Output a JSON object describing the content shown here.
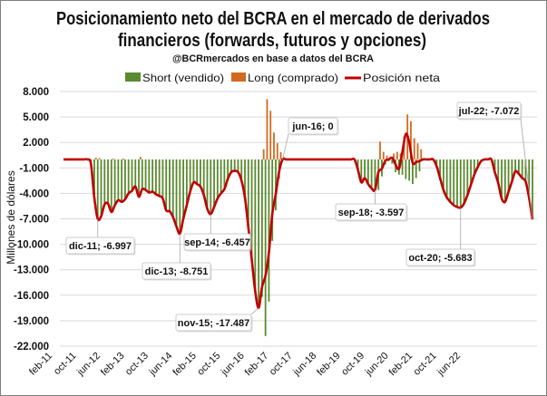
{
  "chart_data": {
    "type": "bar+line",
    "title_line1": "Posicionamiento neto del BCRA en el mercado de derivados",
    "title_line2": "financieros (forwards, futuros y opciones)",
    "subtitle": "@BCRmercados en base a datos del BCRA",
    "ylabel": "Millones de dólares",
    "ylim": [
      -22000,
      8000
    ],
    "y_ticks": [
      "8.000",
      "5.000",
      "2.000",
      "-1.000",
      "-4.000",
      "-7.000",
      "-10.000",
      "-13.000",
      "-16.000",
      "-19.000",
      "-22.000"
    ],
    "y_tick_values": [
      8000,
      5000,
      2000,
      -1000,
      -4000,
      -7000,
      -10000,
      -13000,
      -16000,
      -19000,
      -22000
    ],
    "x_range": [
      "feb-11",
      "jul-22"
    ],
    "x_frequency": "monthly",
    "x_ticks": [
      "feb-11",
      "oct-11",
      "jun-12",
      "feb-13",
      "oct-13",
      "jun-14",
      "feb-15",
      "oct-15",
      "jun-16",
      "feb-17",
      "oct-17",
      "jun-18",
      "feb-19",
      "oct-19",
      "jun-20",
      "feb-21",
      "oct-21",
      "jun-22"
    ],
    "grid": true,
    "legend_position": "top",
    "colors": {
      "short": "#5a8a2e",
      "long": "#d2691e",
      "net": "#c00000"
    },
    "series": [
      {
        "name": "Short (vendido)",
        "kind": "bar",
        "values": [
          0,
          0,
          0,
          0,
          0,
          0,
          0,
          0,
          -500,
          -4500,
          -6997,
          -6700,
          -5300,
          -5200,
          -6200,
          -5400,
          -4800,
          -5000,
          -4700,
          -4000,
          -3700,
          -3200,
          -4400,
          -3500,
          -3600,
          -3900,
          -3800,
          -4100,
          -4300,
          -4600,
          -6000,
          -6100,
          -6800,
          -7900,
          -8751,
          -7000,
          -5400,
          -3800,
          -2700,
          -2900,
          -3200,
          -4200,
          -5800,
          -6457,
          -5600,
          -4600,
          -4000,
          -3500,
          -2300,
          -1500,
          -1350,
          -1500,
          -2500,
          -4500,
          -8000,
          -11800,
          -15500,
          -17487,
          -16200,
          -20800,
          -16750,
          -9600,
          -6000,
          -2250,
          0,
          0,
          0,
          0,
          0,
          0,
          0,
          0,
          0,
          0,
          0,
          0,
          0,
          0,
          0,
          0,
          0,
          0,
          0,
          0,
          0,
          0,
          -1200,
          -2700,
          -2200,
          -3000,
          -3500,
          -3600,
          -3600,
          -2000,
          -600,
          -200,
          -500,
          -1500,
          -1800,
          -1800,
          -2300,
          -2500,
          -2900,
          -2200,
          -1400,
          0,
          0,
          0,
          0,
          -800,
          -2200,
          -3600,
          -4500,
          -5000,
          -5400,
          -5600,
          -5683,
          -5200,
          -4200,
          -3000,
          -1800,
          -900,
          -200,
          0,
          0,
          0,
          -1500,
          -2800,
          -4600,
          -5000,
          -3800,
          -2600,
          -1400,
          -1700,
          -2200,
          -2600,
          -4500,
          -7072
        ]
      },
      {
        "name": "Long (comprado)",
        "kind": "bar",
        "values": [
          0,
          0,
          0,
          0,
          0,
          0,
          0,
          0,
          0,
          200,
          150,
          0,
          0,
          0,
          100,
          0,
          0,
          100,
          0,
          0,
          0,
          0,
          300,
          0,
          0,
          0,
          0,
          0,
          0,
          0,
          0,
          0,
          0,
          0,
          0,
          0,
          0,
          0,
          0,
          0,
          0,
          0,
          0,
          0,
          0,
          0,
          0,
          0,
          0,
          0,
          0,
          0,
          0,
          0,
          0,
          0,
          0,
          0,
          1200,
          7090,
          5730,
          3170,
          1920,
          850,
          0,
          0,
          0,
          0,
          0,
          0,
          0,
          0,
          0,
          0,
          0,
          0,
          0,
          0,
          0,
          0,
          0,
          0,
          0,
          0,
          0,
          0,
          0,
          0,
          0,
          0,
          0,
          0,
          2100,
          900,
          450,
          200,
          700,
          900,
          700,
          2700,
          5300,
          4500,
          2500,
          1900,
          1200,
          0,
          0,
          0,
          0,
          0,
          0,
          0,
          0,
          0,
          0,
          0,
          0,
          0,
          0,
          0,
          0,
          0,
          0,
          0,
          0,
          0,
          0,
          0,
          0,
          0,
          0,
          0,
          0,
          0,
          0,
          0,
          0,
          0
        ]
      },
      {
        "name": "Posición neta",
        "kind": "line",
        "values": [
          0,
          0,
          0,
          0,
          0,
          0,
          0,
          0,
          -500,
          -4500,
          -6997,
          -6700,
          -5300,
          -5200,
          -6200,
          -5400,
          -4800,
          -5000,
          -4700,
          -4000,
          -3700,
          -3200,
          -4400,
          -3500,
          -3600,
          -3900,
          -3800,
          -4100,
          -4300,
          -4600,
          -6000,
          -6100,
          -6800,
          -7900,
          -8751,
          -7000,
          -5400,
          -3800,
          -2700,
          -2900,
          -3200,
          -4200,
          -5800,
          -6457,
          -5600,
          -4600,
          -4000,
          -3500,
          -2300,
          -1500,
          -1350,
          -1500,
          -2500,
          -4500,
          -8000,
          -11800,
          -15500,
          -17487,
          -15000,
          -13700,
          -11000,
          -6400,
          -4100,
          -1400,
          0,
          0,
          0,
          0,
          0,
          0,
          0,
          0,
          0,
          0,
          0,
          0,
          0,
          0,
          0,
          0,
          0,
          0,
          0,
          0,
          0,
          0,
          -1200,
          -2700,
          -2200,
          -2900,
          -3400,
          -3597,
          -1500,
          -1100,
          -150,
          0,
          200,
          -600,
          -1100,
          900,
          3000,
          2000,
          -400,
          -300,
          -200,
          0,
          0,
          0,
          0,
          -800,
          -2200,
          -3600,
          -4500,
          -5000,
          -5400,
          -5600,
          -5683,
          -5200,
          -4200,
          -3000,
          -1800,
          -900,
          -200,
          0,
          0,
          0,
          -1500,
          -2800,
          -4600,
          -5000,
          -3800,
          -2600,
          -1400,
          -1700,
          -2200,
          -2600,
          -4500,
          -7072
        ]
      }
    ],
    "annotations": [
      {
        "month": "dic-11",
        "value": -6997,
        "label": "dic-11; -6.997"
      },
      {
        "month": "dic-13",
        "value": -8751,
        "label": "dic-13; -8.751"
      },
      {
        "month": "sep-14",
        "value": -6457,
        "label": "sep-14; -6.457"
      },
      {
        "month": "nov-15",
        "value": -17487,
        "label": "nov-15; -17.487"
      },
      {
        "month": "jun-16",
        "value": 0,
        "label": "jun-16; 0"
      },
      {
        "month": "sep-18",
        "value": -3597,
        "label": "sep-18; -3.597"
      },
      {
        "month": "oct-20",
        "value": -5683,
        "label": "oct-20; -5.683"
      },
      {
        "month": "jul-22",
        "value": -7072,
        "label": "jul-22; -7.072"
      }
    ]
  }
}
